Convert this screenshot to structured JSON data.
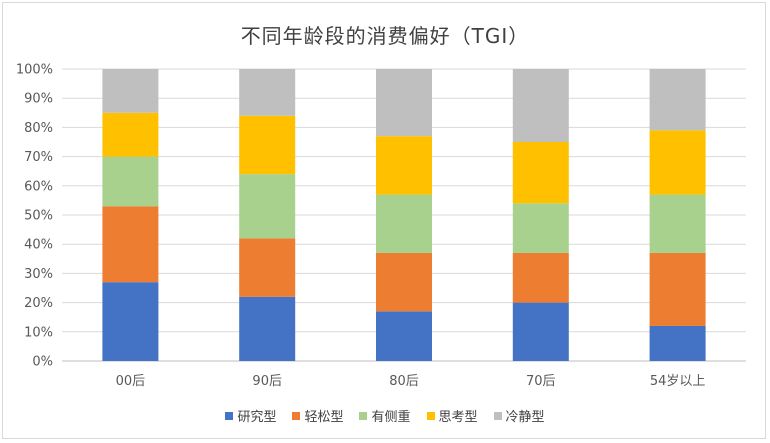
{
  "chart_data": {
    "type": "bar",
    "stacked": true,
    "title": "不同年龄段的消费偏好（TGI）",
    "categories": [
      "00后",
      "90后",
      "80后",
      "70后",
      "54岁以上"
    ],
    "y_ticks": [
      "0%",
      "10%",
      "20%",
      "30%",
      "40%",
      "50%",
      "60%",
      "70%",
      "80%",
      "90%",
      "100%"
    ],
    "ylim": [
      0,
      100
    ],
    "grid": true,
    "legend_position": "bottom",
    "series": [
      {
        "name": "研究型",
        "color": "#4472C4",
        "values": [
          27,
          22,
          17,
          20,
          12
        ]
      },
      {
        "name": "轻松型",
        "color": "#ED7D31",
        "values": [
          26,
          20,
          20,
          17,
          25
        ]
      },
      {
        "name": "有侧重",
        "color": "#A9D18E",
        "values": [
          17,
          22,
          20,
          17,
          20
        ]
      },
      {
        "name": "思考型",
        "color": "#FFC000",
        "values": [
          15,
          20,
          20,
          21,
          22
        ]
      },
      {
        "name": "冷静型",
        "color": "#BFBFBF",
        "values": [
          15,
          16,
          23,
          25,
          21
        ]
      }
    ]
  }
}
